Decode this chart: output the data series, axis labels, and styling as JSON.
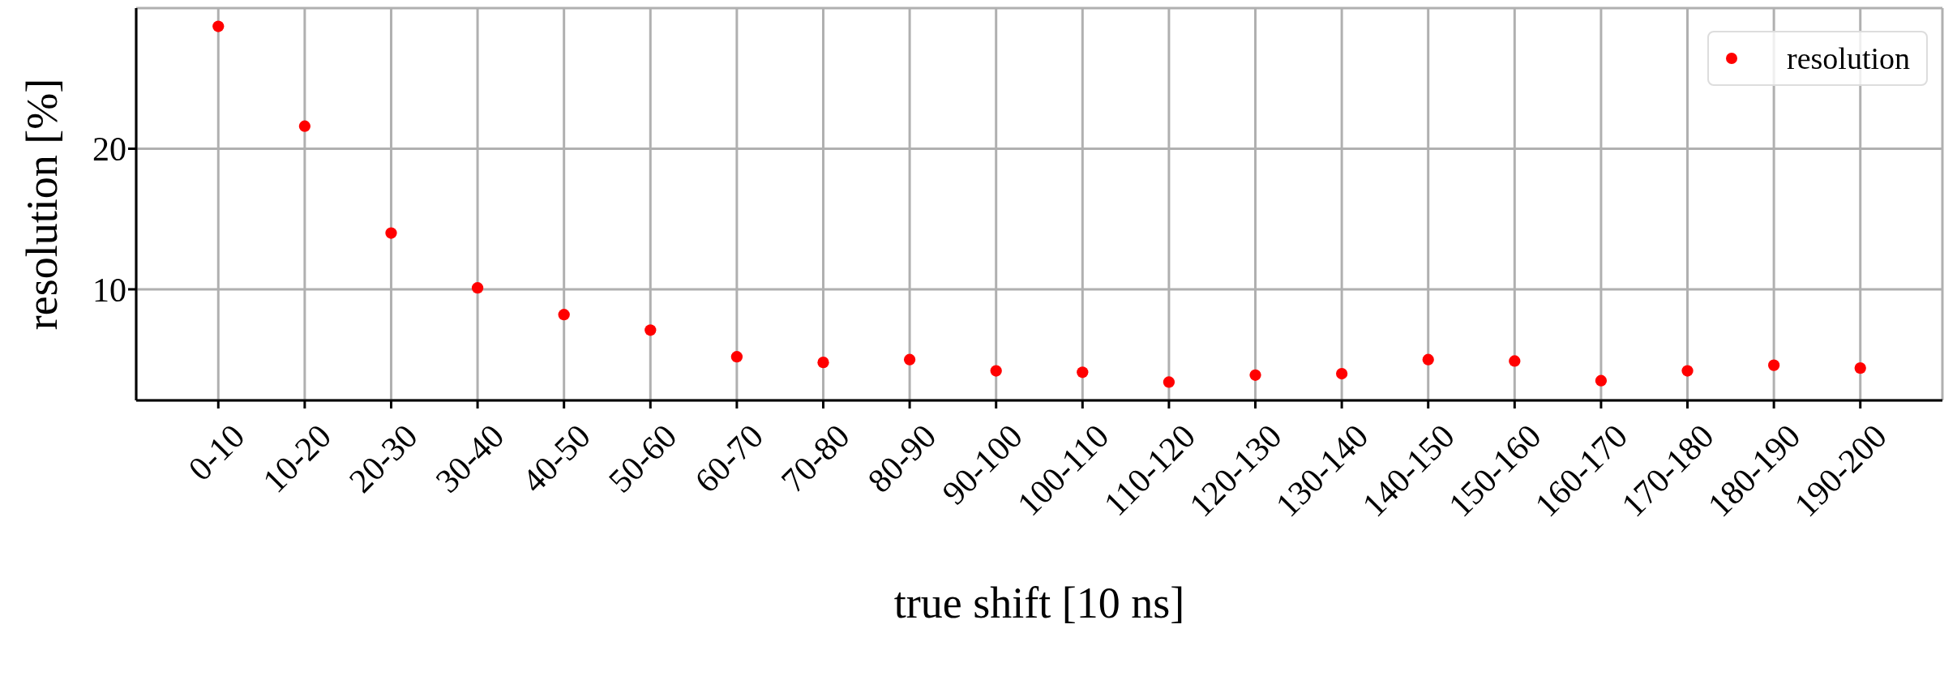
{
  "chart_data": {
    "type": "scatter",
    "xlabel": "true shift [10 ns]",
    "ylabel": "resolution [%]",
    "categories": [
      "0-10",
      "10-20",
      "20-30",
      "30-40",
      "40-50",
      "50-60",
      "60-70",
      "70-80",
      "80-90",
      "90-100",
      "100-110",
      "110-120",
      "120-130",
      "130-140",
      "140-150",
      "150-160",
      "160-170",
      "170-180",
      "180-190",
      "190-200"
    ],
    "series": [
      {
        "name": "resolution",
        "color": "#ff0000",
        "values": [
          28.7,
          21.6,
          14.0,
          10.1,
          8.2,
          7.1,
          5.2,
          4.8,
          5.0,
          4.2,
          4.1,
          3.4,
          3.9,
          4.0,
          5.0,
          4.9,
          3.5,
          4.2,
          4.6,
          4.4
        ]
      }
    ],
    "ylim": [
      2.1,
      30
    ],
    "yticks": [
      10,
      20
    ],
    "grid": true,
    "legend": "top right",
    "marker": "circle"
  }
}
